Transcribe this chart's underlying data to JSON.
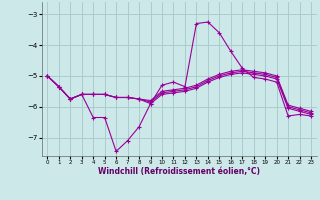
{
  "xlabel": "Windchill (Refroidissement éolien,°C)",
  "bg_color": "#cce8e8",
  "grid_color": "#aacccc",
  "line_color": "#990099",
  "ylim": [
    -7.6,
    -2.6
  ],
  "yticks": [
    -7,
    -6,
    -5,
    -4,
    -3
  ],
  "xlim": [
    -0.5,
    23.5
  ],
  "xticks": [
    0,
    1,
    2,
    3,
    4,
    5,
    6,
    7,
    8,
    9,
    10,
    11,
    12,
    13,
    14,
    15,
    16,
    17,
    18,
    19,
    20,
    21,
    22,
    23
  ],
  "series": [
    [
      [
        0,
        -5.0
      ],
      [
        1,
        -5.35
      ],
      [
        2,
        -5.75
      ],
      [
        3,
        -5.6
      ],
      [
        4,
        -6.35
      ],
      [
        5,
        -6.35
      ],
      [
        6,
        -7.45
      ],
      [
        7,
        -7.1
      ],
      [
        8,
        -6.65
      ],
      [
        9,
        -5.9
      ],
      [
        10,
        -5.3
      ],
      [
        11,
        -5.2
      ],
      [
        12,
        -5.35
      ],
      [
        13,
        -3.3
      ],
      [
        14,
        -3.25
      ],
      [
        15,
        -3.6
      ],
      [
        16,
        -4.2
      ],
      [
        17,
        -4.75
      ],
      [
        18,
        -5.05
      ],
      [
        19,
        -5.1
      ],
      [
        20,
        -5.2
      ],
      [
        21,
        -6.3
      ],
      [
        22,
        -6.25
      ],
      [
        23,
        -6.3
      ]
    ],
    [
      [
        0,
        -5.0
      ],
      [
        1,
        -5.35
      ],
      [
        2,
        -5.75
      ],
      [
        3,
        -5.6
      ],
      [
        4,
        -5.6
      ],
      [
        5,
        -5.6
      ],
      [
        6,
        -5.7
      ],
      [
        7,
        -5.7
      ],
      [
        8,
        -5.75
      ],
      [
        9,
        -5.8
      ],
      [
        10,
        -5.5
      ],
      [
        11,
        -5.45
      ],
      [
        12,
        -5.4
      ],
      [
        13,
        -5.3
      ],
      [
        14,
        -5.1
      ],
      [
        15,
        -4.95
      ],
      [
        16,
        -4.85
      ],
      [
        17,
        -4.8
      ],
      [
        18,
        -4.85
      ],
      [
        19,
        -4.9
      ],
      [
        20,
        -5.0
      ],
      [
        21,
        -5.95
      ],
      [
        22,
        -6.05
      ],
      [
        23,
        -6.15
      ]
    ],
    [
      [
        0,
        -5.0
      ],
      [
        1,
        -5.35
      ],
      [
        2,
        -5.75
      ],
      [
        3,
        -5.6
      ],
      [
        4,
        -5.6
      ],
      [
        5,
        -5.6
      ],
      [
        6,
        -5.7
      ],
      [
        7,
        -5.7
      ],
      [
        8,
        -5.75
      ],
      [
        9,
        -5.85
      ],
      [
        10,
        -5.55
      ],
      [
        11,
        -5.5
      ],
      [
        12,
        -5.45
      ],
      [
        13,
        -5.35
      ],
      [
        14,
        -5.15
      ],
      [
        15,
        -5.0
      ],
      [
        16,
        -4.9
      ],
      [
        17,
        -4.85
      ],
      [
        18,
        -4.9
      ],
      [
        19,
        -4.95
      ],
      [
        20,
        -5.05
      ],
      [
        21,
        -6.0
      ],
      [
        22,
        -6.1
      ],
      [
        23,
        -6.2
      ]
    ],
    [
      [
        0,
        -5.0
      ],
      [
        1,
        -5.35
      ],
      [
        2,
        -5.75
      ],
      [
        3,
        -5.6
      ],
      [
        4,
        -5.6
      ],
      [
        5,
        -5.6
      ],
      [
        6,
        -5.7
      ],
      [
        7,
        -5.7
      ],
      [
        8,
        -5.75
      ],
      [
        9,
        -5.9
      ],
      [
        10,
        -5.6
      ],
      [
        11,
        -5.55
      ],
      [
        12,
        -5.5
      ],
      [
        13,
        -5.4
      ],
      [
        14,
        -5.2
      ],
      [
        15,
        -5.05
      ],
      [
        16,
        -4.95
      ],
      [
        17,
        -4.9
      ],
      [
        18,
        -4.95
      ],
      [
        19,
        -5.0
      ],
      [
        20,
        -5.1
      ],
      [
        21,
        -6.05
      ],
      [
        22,
        -6.15
      ],
      [
        23,
        -6.25
      ]
    ]
  ]
}
